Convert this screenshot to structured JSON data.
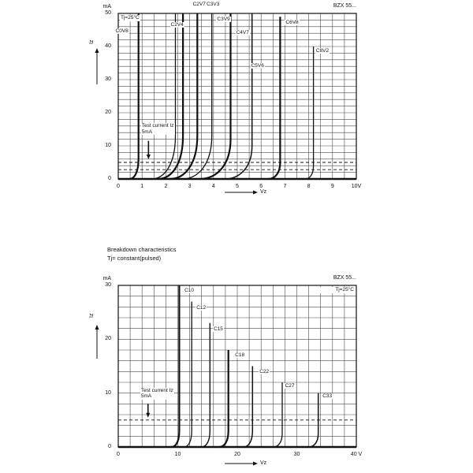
{
  "section": {
    "heading": "Breakdown characteristics",
    "subheading": "Tj= constant(pulsed)"
  },
  "colors": {
    "line": "#111111",
    "grid": "#4a4a4a",
    "text": "#111111",
    "background": "#ffffff"
  },
  "chart_data": [
    {
      "type": "line",
      "title": "BZX 55...",
      "condition": "Tj=25°C",
      "condition_pos": "top-left",
      "xlabel": "Vz",
      "ylabel": "Iz",
      "x_unit": "V",
      "y_unit": "mA",
      "xlim": [
        0,
        10
      ],
      "ylim": [
        0,
        50
      ],
      "x_grid_step": 0.5,
      "y_grid_step": 2,
      "x_ticks": [
        {
          "v": 0,
          "label": "0"
        },
        {
          "v": 1,
          "label": "1"
        },
        {
          "v": 2,
          "label": "2"
        },
        {
          "v": 3,
          "label": "3"
        },
        {
          "v": 4,
          "label": "4"
        },
        {
          "v": 5,
          "label": "5"
        },
        {
          "v": 6,
          "label": "6"
        },
        {
          "v": 7,
          "label": "7"
        },
        {
          "v": 8,
          "label": "8"
        },
        {
          "v": 9,
          "label": "9"
        },
        {
          "v": 10,
          "label": "10V"
        }
      ],
      "y_ticks": [
        {
          "i": 0,
          "label": "0"
        },
        {
          "i": 10,
          "label": "10"
        },
        {
          "i": 20,
          "label": "20"
        },
        {
          "i": 30,
          "label": "30"
        },
        {
          "i": 40,
          "label": "40"
        },
        {
          "i": 50,
          "label": "50"
        }
      ],
      "dashed_current_lines_mA": [
        5,
        2.8
      ],
      "test_annotation": {
        "line1": "Test current Iz",
        "line2": "5mA",
        "text_v": 0.95,
        "text_i": 16.8,
        "arrow_v": 1.27,
        "arrow_from_i": 11.5,
        "arrow_to_i": 6.2
      },
      "series": [
        {
          "name": "C0V8",
          "vz": 0.85,
          "i_top": 50,
          "foot": 0.38,
          "knee": 6,
          "width": 2.2
        },
        {
          "name": "C2V4",
          "vz": 2.4,
          "i_top": 50,
          "foot": 1.0,
          "knee": 13,
          "width": 1.3
        },
        {
          "name": "C2V7",
          "vz": 2.72,
          "i_top": 50,
          "foot": 1.05,
          "knee": 13,
          "width": 2.2
        },
        {
          "name": "C3V3",
          "vz": 3.32,
          "i_top": 50,
          "foot": 1.15,
          "knee": 13,
          "width": 2.2
        },
        {
          "name": "C3V9",
          "vz": 3.93,
          "i_top": 50,
          "foot": 1.25,
          "knee": 13,
          "width": 1.3
        },
        {
          "name": "C4V7",
          "vz": 4.72,
          "i_top": 50,
          "foot": 1.3,
          "knee": 12,
          "width": 2.2
        },
        {
          "name": "C5V6",
          "vz": 5.62,
          "i_top": 50,
          "foot": 1.15,
          "knee": 10,
          "width": 1.5
        },
        {
          "name": "C6V8",
          "vz": 6.8,
          "i_top": 49,
          "foot": 0.5,
          "knee": 5,
          "width": 2.2
        },
        {
          "name": "C8V2",
          "vz": 8.2,
          "i_top": 40,
          "foot": 0.35,
          "knee": 4,
          "width": 1.3
        }
      ],
      "curve_labels": [
        {
          "text": "C0V8",
          "v": -0.15,
          "i": 45.5
        },
        {
          "text": "C2V4",
          "v": 2.17,
          "i": 47.5
        },
        {
          "text": "C2V7",
          "v": 3.1,
          "i": 53.5
        },
        {
          "text": "C3V3",
          "v": 3.68,
          "i": 53.5
        },
        {
          "text": "C3V9",
          "v": 4.12,
          "i": 49.0
        },
        {
          "text": "C4V7",
          "v": 4.92,
          "i": 45.0
        },
        {
          "text": "C5V6",
          "v": 5.55,
          "i": 35.0
        },
        {
          "text": "C6V8",
          "v": 7.0,
          "i": 48.2
        },
        {
          "text": "C8V2",
          "v": 8.27,
          "i": 39.5
        }
      ]
    },
    {
      "type": "line",
      "title": "BZX 55...",
      "condition": "Tj=25°C",
      "condition_pos": "top-right",
      "xlabel": "Vz",
      "ylabel": "Iz",
      "x_unit": "V",
      "y_unit": "mA",
      "xlim": [
        0,
        40
      ],
      "ylim": [
        0,
        30
      ],
      "x_grid_step": 2,
      "y_grid_step": 2,
      "x_ticks": [
        {
          "v": 0,
          "label": "0"
        },
        {
          "v": 10,
          "label": "10"
        },
        {
          "v": 20,
          "label": "20"
        },
        {
          "v": 30,
          "label": "30"
        },
        {
          "v": 40,
          "label": "40 V"
        }
      ],
      "y_ticks": [
        {
          "i": 0,
          "label": "0"
        },
        {
          "i": 10,
          "label": "10"
        },
        {
          "i": 20,
          "label": "20"
        },
        {
          "i": 30,
          "label": "30"
        }
      ],
      "dashed_current_lines_mA": [
        5
      ],
      "test_annotation": {
        "line1": "Test current Iz",
        "line2": "5mA",
        "text_v": 3.7,
        "text_i": 11.0,
        "arrow_v": 5.0,
        "arrow_from_i": 8.0,
        "arrow_to_i": 5.6
      },
      "series": [
        {
          "name": "C10",
          "vz": 10.25,
          "i_top": 30,
          "foot": 1.3,
          "knee": 3,
          "width": 2.2
        },
        {
          "name": "C12",
          "vz": 12.35,
          "i_top": 27,
          "foot": 1.3,
          "knee": 3,
          "width": 1.3
        },
        {
          "name": "C15",
          "vz": 15.4,
          "i_top": 23,
          "foot": 1.4,
          "knee": 3,
          "width": 1.4
        },
        {
          "name": "C18",
          "vz": 18.5,
          "i_top": 18,
          "foot": 1.5,
          "knee": 3,
          "width": 2.2
        },
        {
          "name": "C22",
          "vz": 22.55,
          "i_top": 15,
          "foot": 1.5,
          "knee": 3,
          "width": 1.5
        },
        {
          "name": "C27",
          "vz": 27.55,
          "i_top": 12,
          "foot": 1.5,
          "knee": 2.5,
          "width": 1.3
        },
        {
          "name": "C33",
          "vz": 33.6,
          "i_top": 10,
          "foot": 1.6,
          "knee": 2.5,
          "width": 1.5
        }
      ],
      "curve_labels": [
        {
          "text": "C10",
          "v": 11.0,
          "i": 29.6
        },
        {
          "text": "C12",
          "v": 13.0,
          "i": 26.4
        },
        {
          "text": "C15",
          "v": 15.9,
          "i": 22.4
        },
        {
          "text": "C18",
          "v": 19.5,
          "i": 17.6
        },
        {
          "text": "C22",
          "v": 23.6,
          "i": 14.5
        },
        {
          "text": "C27",
          "v": 27.9,
          "i": 11.8
        },
        {
          "text": "C33",
          "v": 34.2,
          "i": 10.0
        }
      ]
    }
  ]
}
